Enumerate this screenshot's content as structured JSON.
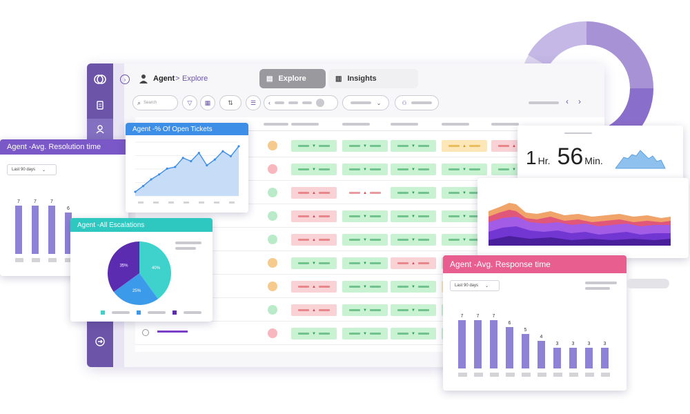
{
  "breadcrumb": {
    "root": "Agent",
    "separator": ">",
    "current": "Explore"
  },
  "tabs": [
    {
      "label": "Explore",
      "active": true
    },
    {
      "label": "Insights",
      "active": false
    }
  ],
  "search": {
    "placeholder": "Search"
  },
  "colors": {
    "brand": "#6c55a8",
    "green": "#c8f2d2",
    "red": "#f9d2d6",
    "amber": "#fde7b8",
    "purpleBar": "#8b7dd0"
  },
  "grid_rows": [
    [
      "green",
      "green",
      "green",
      "amber",
      "red"
    ],
    [
      "green",
      "green",
      "green",
      "green",
      "green"
    ],
    [
      "red",
      "red-strong",
      "green",
      "green",
      "green"
    ],
    [
      "red",
      "green",
      "green",
      "green",
      "red"
    ],
    [
      "red",
      "green",
      "green",
      "green",
      "red"
    ],
    [
      "green",
      "green",
      "red",
      "green",
      "green"
    ],
    [
      "red",
      "green",
      "green",
      "amber",
      "green"
    ],
    [
      "red",
      "green",
      "green",
      "green",
      "green"
    ],
    [
      "green",
      "green",
      "green",
      "green",
      "green"
    ]
  ],
  "resolution_card": {
    "title": "Agent -Avg. Resolution time",
    "filter": "Last 90 days",
    "chart_data": {
      "type": "bar",
      "values": [
        7,
        7,
        7,
        6
      ]
    }
  },
  "open_tickets_card": {
    "title": "Agent -% Of Open Tickets",
    "chart_data": {
      "type": "area",
      "values": [
        0.5,
        1.2,
        2.0,
        2.6,
        3.3,
        3.5,
        4.6,
        4.2,
        5.2,
        3.7,
        4.4,
        5.4,
        4.8,
        6.0
      ]
    }
  },
  "escalations_card": {
    "title": "Agent -All Escalations",
    "chart_data": {
      "type": "pie",
      "slices": [
        {
          "label": "40%",
          "value": 40,
          "color": "#3fd1cb"
        },
        {
          "label": "25%",
          "value": 25,
          "color": "#3b9bea"
        },
        {
          "label": "35%",
          "value": 35,
          "color": "#5b2bb0"
        }
      ]
    }
  },
  "time_card": {
    "value_hr": "1",
    "unit_hr": "Hr.",
    "value_min": "56",
    "unit_min": "Min."
  },
  "response_card": {
    "title": "Agent -Avg. Response time",
    "filter": "Last 90 days",
    "chart_data": {
      "type": "bar",
      "values": [
        7,
        7,
        7,
        6,
        5,
        4,
        3,
        3,
        3,
        3
      ]
    }
  }
}
